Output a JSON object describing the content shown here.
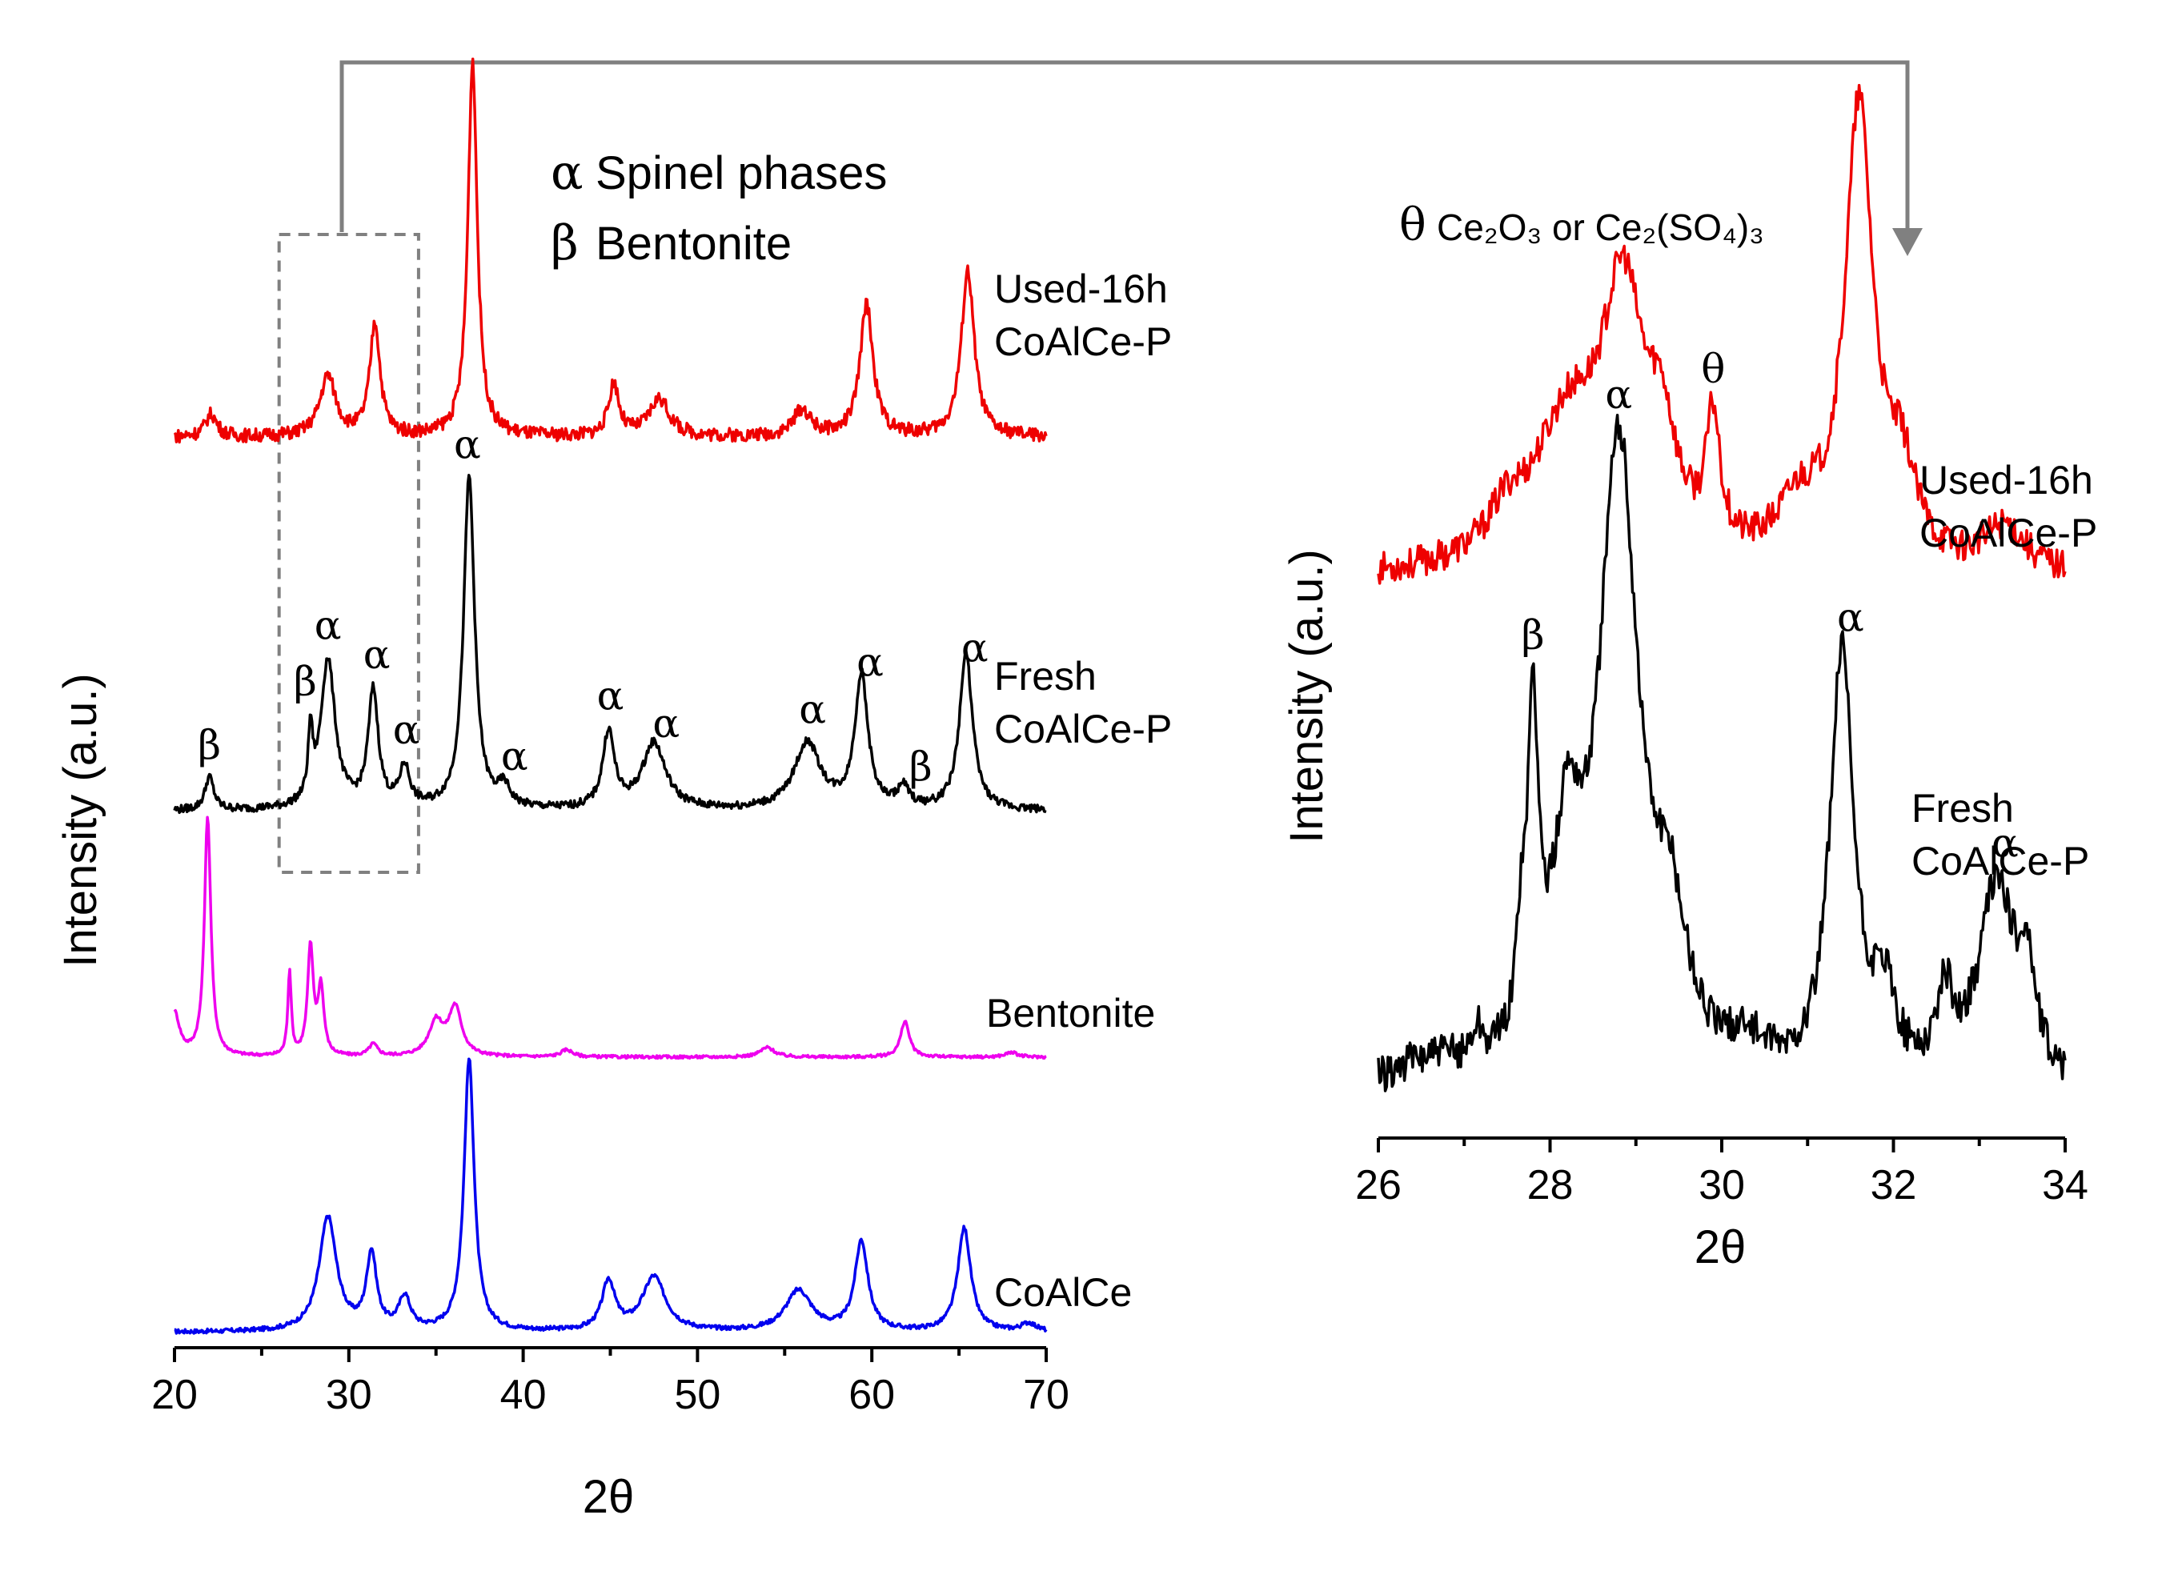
{
  "chart_data": [
    {
      "name": "left-panel",
      "type": "line",
      "xlabel": "2θ",
      "ylabel": "Intensity (a.u.)",
      "xlim": [
        20,
        70
      ],
      "xticks": [
        20,
        30,
        40,
        50,
        60,
        70
      ],
      "legend": [
        {
          "symbol": "α",
          "text": "Spinel phases"
        },
        {
          "symbol": "β",
          "text": "Bentonite"
        }
      ],
      "highlight_region_x": [
        26,
        34
      ],
      "series": [
        {
          "name": "CoAlCe",
          "label_lines": [
            "CoAlCe"
          ],
          "color": "#0000ee",
          "baseline": 0.03,
          "noise": 0.008,
          "peaks": [
            [
              28.8,
              0.42,
              0.6
            ],
            [
              31.3,
              0.28,
              0.35
            ],
            [
              33.2,
              0.12,
              0.4
            ],
            [
              36.9,
              1.0,
              0.35
            ],
            [
              44.9,
              0.18,
              0.45
            ],
            [
              47.5,
              0.2,
              0.8
            ],
            [
              55.8,
              0.15,
              0.9
            ],
            [
              59.4,
              0.33,
              0.45
            ],
            [
              65.3,
              0.38,
              0.45
            ],
            [
              69.0,
              0.03,
              0.5
            ]
          ]
        },
        {
          "name": "Bentonite",
          "label_lines": [
            "Bentonite"
          ],
          "color": "#ee00ee",
          "baseline": 0.03,
          "noise": 0.006,
          "peaks": [
            [
              20.0,
              0.18,
              0.35
            ],
            [
              21.9,
              1.0,
              0.22
            ],
            [
              26.6,
              0.35,
              0.12
            ],
            [
              27.8,
              0.45,
              0.2
            ],
            [
              28.4,
              0.28,
              0.2
            ],
            [
              31.4,
              0.05,
              0.3
            ],
            [
              35.0,
              0.14,
              0.5
            ],
            [
              36.1,
              0.2,
              0.45
            ],
            [
              42.5,
              0.03,
              0.4
            ],
            [
              54.0,
              0.04,
              0.5
            ],
            [
              61.9,
              0.15,
              0.3
            ],
            [
              68.0,
              0.02,
              0.4
            ]
          ]
        },
        {
          "name": "Fresh CoAlCe-P",
          "label_lines": [
            "Fresh",
            "CoAlCe-P"
          ],
          "color": "#000000",
          "baseline": 0.04,
          "noise": 0.012,
          "peaks": [
            [
              22.0,
              0.1,
              0.3
            ],
            [
              27.8,
              0.2,
              0.15
            ],
            [
              28.8,
              0.45,
              0.5
            ],
            [
              31.4,
              0.35,
              0.35
            ],
            [
              33.2,
              0.12,
              0.35
            ],
            [
              36.9,
              1.0,
              0.38
            ],
            [
              38.9,
              0.06,
              0.4
            ],
            [
              44.9,
              0.23,
              0.4
            ],
            [
              47.5,
              0.2,
              0.8
            ],
            [
              56.3,
              0.2,
              0.9
            ],
            [
              59.4,
              0.4,
              0.45
            ],
            [
              61.8,
              0.06,
              0.4
            ],
            [
              65.4,
              0.47,
              0.45
            ]
          ]
        },
        {
          "name": "Used-16h CoAlCe-P",
          "label_lines": [
            "Used-16h",
            "CoAlCe-P"
          ],
          "color": "#ee0000",
          "baseline": 0.05,
          "noise": 0.018,
          "peaks": [
            [
              22.1,
              0.06,
              0.4
            ],
            [
              28.8,
              0.16,
              0.55
            ],
            [
              31.5,
              0.3,
              0.35
            ],
            [
              37.1,
              1.0,
              0.32
            ],
            [
              45.2,
              0.14,
              0.35
            ],
            [
              47.8,
              0.1,
              0.7
            ],
            [
              56.0,
              0.07,
              0.6
            ],
            [
              59.7,
              0.35,
              0.45
            ],
            [
              65.5,
              0.44,
              0.45
            ]
          ]
        }
      ],
      "peak_labels": [
        {
          "series": "Fresh CoAlCe-P",
          "x": 22.0,
          "symbol": "β"
        },
        {
          "series": "Fresh CoAlCe-P",
          "x": 27.5,
          "symbol": "β"
        },
        {
          "series": "Fresh CoAlCe-P",
          "x": 28.8,
          "symbol": "α"
        },
        {
          "series": "Fresh CoAlCe-P",
          "x": 31.6,
          "symbol": "α"
        },
        {
          "series": "Fresh CoAlCe-P",
          "x": 33.3,
          "symbol": "α"
        },
        {
          "series": "Fresh CoAlCe-P",
          "x": 36.8,
          "symbol": "α"
        },
        {
          "series": "Fresh CoAlCe-P",
          "x": 39.5,
          "symbol": "α"
        },
        {
          "series": "Fresh CoAlCe-P",
          "x": 45.0,
          "symbol": "α"
        },
        {
          "series": "Fresh CoAlCe-P",
          "x": 48.2,
          "symbol": "α"
        },
        {
          "series": "Fresh CoAlCe-P",
          "x": 56.6,
          "symbol": "α"
        },
        {
          "series": "Fresh CoAlCe-P",
          "x": 59.9,
          "symbol": "α"
        },
        {
          "series": "Fresh CoAlCe-P",
          "x": 62.8,
          "symbol": "β"
        },
        {
          "series": "Fresh CoAlCe-P",
          "x": 65.9,
          "symbol": "α"
        }
      ]
    },
    {
      "name": "right-panel",
      "type": "line",
      "xlabel": "2θ",
      "ylabel": "Intensity (a.u.)",
      "xlim": [
        26,
        34
      ],
      "xticks": [
        26,
        28,
        30,
        32,
        34
      ],
      "annotation": {
        "symbol": "θ",
        "text": "Ce₂O₃ or Ce₂(SO₄)₃"
      },
      "series": [
        {
          "name": "Used-16h CoAlCe-P",
          "label_lines": [
            "Used-16h",
            "CoAlCe-P"
          ],
          "color": "#ee0000",
          "baseline": 0.15,
          "noise": 0.035,
          "peaks": [
            [
              27.5,
              0.08,
              0.25
            ],
            [
              28.2,
              0.3,
              0.5
            ],
            [
              28.85,
              0.55,
              0.3
            ],
            [
              29.3,
              0.22,
              0.2
            ],
            [
              29.9,
              0.28,
              0.1
            ],
            [
              30.9,
              0.12,
              0.3
            ],
            [
              31.6,
              1.0,
              0.2
            ],
            [
              32.1,
              0.18,
              0.2
            ],
            [
              33.3,
              0.1,
              0.3
            ]
          ]
        },
        {
          "name": "Fresh CoAlCe-P",
          "label_lines": [
            "Fresh",
            "CoAlCe-P"
          ],
          "color": "#000000",
          "baseline": 0.04,
          "noise": 0.03,
          "peaks": [
            [
              26.6,
              0.04,
              0.5
            ],
            [
              27.15,
              0.05,
              0.08
            ],
            [
              27.65,
              0.12,
              0.06
            ],
            [
              27.8,
              0.52,
              0.08
            ],
            [
              28.2,
              0.32,
              0.2
            ],
            [
              28.8,
              1.0,
              0.28
            ],
            [
              29.4,
              0.2,
              0.25
            ],
            [
              30.3,
              0.05,
              0.2
            ],
            [
              31.4,
              0.68,
              0.17
            ],
            [
              31.9,
              0.12,
              0.15
            ],
            [
              32.6,
              0.12,
              0.12
            ],
            [
              33.2,
              0.32,
              0.25
            ],
            [
              33.55,
              0.15,
              0.12
            ]
          ]
        }
      ],
      "peak_labels": [
        {
          "series": "Fresh CoAlCe-P",
          "x": 27.8,
          "symbol": "β"
        },
        {
          "series": "Fresh CoAlCe-P",
          "x": 28.8,
          "symbol": "α"
        },
        {
          "series": "Fresh CoAlCe-P",
          "x": 31.5,
          "symbol": "α"
        },
        {
          "series": "Fresh CoAlCe-P",
          "x": 33.3,
          "symbol": "α"
        },
        {
          "series": "Used-16h CoAlCe-P",
          "x": 29.9,
          "symbol": "θ"
        }
      ]
    }
  ]
}
